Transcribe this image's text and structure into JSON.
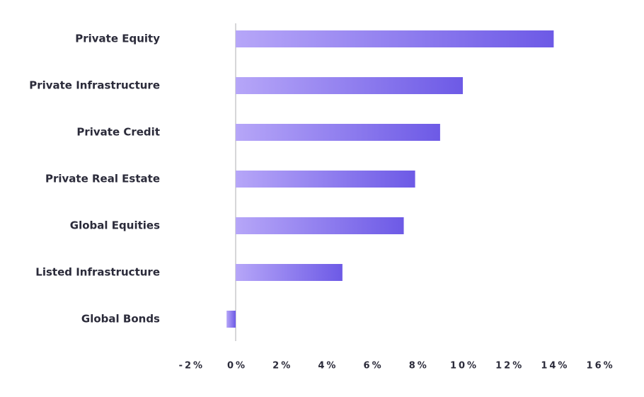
{
  "chart_data": {
    "type": "hbar",
    "categories": [
      "Private Equity",
      "Private Infrastructure",
      "Private Credit",
      "Private Real Estate",
      "Global Equities",
      "Listed Infrastructure",
      "Global Bonds"
    ],
    "values": [
      14.0,
      10.0,
      9.0,
      7.9,
      7.4,
      4.7,
      -0.4
    ],
    "color": {
      "start": "#b6a6f8",
      "end": "#6d5ae6"
    },
    "xlim": [
      -2,
      16
    ],
    "xticks": [
      {
        "value": -2,
        "label": "-2%"
      },
      {
        "value": 0,
        "label": "0%"
      },
      {
        "value": 2,
        "label": "2%"
      },
      {
        "value": 4,
        "label": "4%"
      },
      {
        "value": 6,
        "label": "6%"
      },
      {
        "value": 8,
        "label": "8%"
      },
      {
        "value": 10,
        "label": "10%"
      },
      {
        "value": 12,
        "label": "12%"
      },
      {
        "value": 14,
        "label": "14%"
      },
      {
        "value": 16,
        "label": "16%"
      }
    ],
    "grid": false
  }
}
